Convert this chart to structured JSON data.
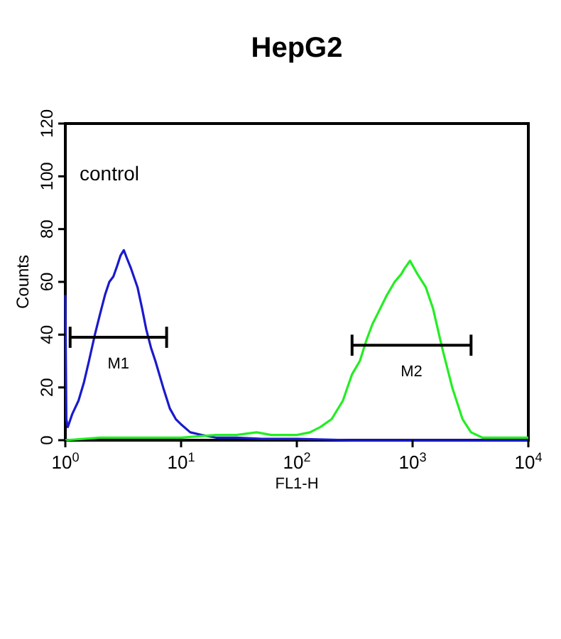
{
  "chart_data": {
    "type": "line",
    "title": "HepG2",
    "xlabel": "FL1-H",
    "ylabel": "Counts",
    "log": "x",
    "xlim": [
      1,
      10000
    ],
    "ylim": [
      0,
      120
    ],
    "xticks": [
      {
        "value": 1,
        "label": "10$^{0}$"
      },
      {
        "value": 10,
        "label": "10$^{1}$"
      },
      {
        "value": 100,
        "label": "10$^{2}$"
      },
      {
        "value": 1000,
        "label": "10$^{3}$"
      },
      {
        "value": 10000,
        "label": "10$^{4}$"
      }
    ],
    "yticks": [
      0,
      20,
      40,
      60,
      80,
      100,
      120
    ],
    "grid": false,
    "marker": "none",
    "line_style": "solid",
    "annotations": [
      "control",
      "M1",
      "M2"
    ],
    "series": [
      {
        "color": "#1a1acc",
        "x": [
          1,
          1.02,
          1.05,
          1.15,
          1.3,
          1.45,
          1.6,
          1.8,
          2,
          2.2,
          2.4,
          2.6,
          2.8,
          3,
          3.2,
          3.4,
          3.7,
          4.2,
          4.6,
          5,
          5.5,
          6,
          7,
          8,
          9,
          10,
          12,
          15,
          20,
          30,
          50,
          100,
          300,
          1000,
          3000,
          10000
        ],
        "values": [
          55,
          8,
          5,
          10,
          15,
          22,
          30,
          40,
          48,
          55,
          60,
          62,
          66,
          70,
          72,
          69,
          65,
          58,
          50,
          42,
          35,
          30,
          20,
          12,
          8,
          6,
          3,
          2,
          1,
          1,
          0.5,
          0.5,
          0,
          0,
          0,
          0
        ]
      },
      {
        "color": "#22ee22",
        "x": [
          1,
          2,
          5,
          10,
          20,
          30,
          45,
          60,
          80,
          100,
          130,
          160,
          200,
          250,
          300,
          350,
          400,
          450,
          500,
          600,
          700,
          800,
          850,
          950,
          1100,
          1300,
          1500,
          1800,
          2200,
          2700,
          3200,
          4000,
          6000,
          10000
        ],
        "values": [
          0,
          1,
          1,
          1,
          2,
          2,
          3,
          2,
          2,
          2,
          3,
          5,
          8,
          15,
          25,
          30,
          38,
          44,
          48,
          55,
          60,
          63,
          65,
          68,
          63,
          58,
          50,
          35,
          20,
          8,
          3,
          1,
          1,
          1
        ]
      },
      {
        "color": "#000000",
        "x": [
          1.1,
          7.5
        ],
        "values": [
          39,
          39
        ],
        "errors": [
          4,
          4
        ]
      },
      {
        "color": "#000000",
        "x": [
          300,
          3200
        ],
        "values": [
          36,
          36
        ],
        "errors": [
          4,
          4
        ]
      }
    ]
  }
}
